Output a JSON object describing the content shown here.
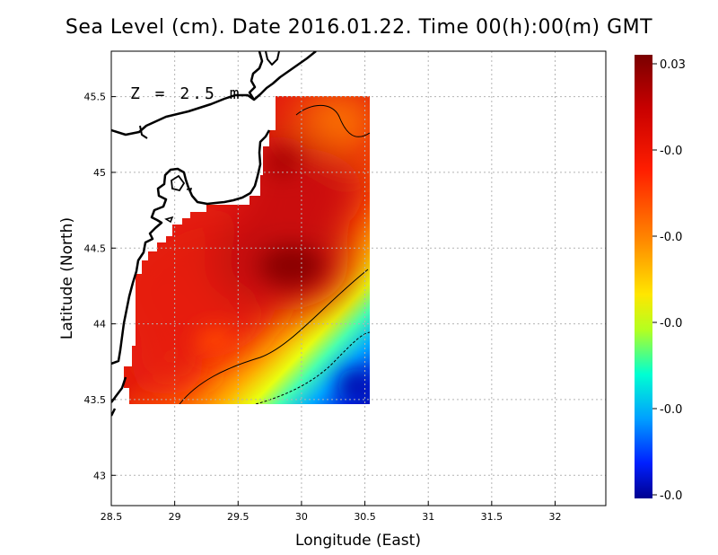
{
  "map": {
    "title": "Sea Level (cm). Date 2016.01.22. Time 00(h):00(m) GMT",
    "depth_label": "Z = 2.5 m",
    "x_axis": {
      "label": "Longitude (East)",
      "range": [
        28.5,
        32.4
      ],
      "ticks": [
        28.5,
        29,
        29.5,
        30,
        30.5,
        31,
        31.5,
        32
      ],
      "tick_labels": [
        "28.5",
        "29",
        "29.5",
        "30",
        "30.5",
        "31",
        "31.5",
        "32"
      ]
    },
    "y_axis": {
      "label": "Latitude (North)",
      "range": [
        42.8,
        45.8
      ],
      "ticks": [
        43,
        43.5,
        44,
        44.5,
        45,
        45.5
      ],
      "tick_labels": [
        "43",
        "43.5",
        "44",
        "44.5",
        "45",
        "45.5"
      ]
    },
    "grid": true,
    "colorbar": {
      "placement": "right",
      "tick_labels": [
        "0.03",
        "-0.0",
        "-0.0",
        "-0.0",
        "-0.0",
        "-0.0"
      ],
      "colors": [
        "#7a0000",
        "#c80000",
        "#ff1e00",
        "#ff7800",
        "#ffd400",
        "#c8ff00",
        "#00ffd0",
        "#0090ff",
        "#0020ff",
        "#000090"
      ]
    },
    "colors": {
      "land_coast": "#000000",
      "grid": "#b4b4b4",
      "max_field": "#8a0505",
      "min_field": "#0010b0"
    }
  }
}
